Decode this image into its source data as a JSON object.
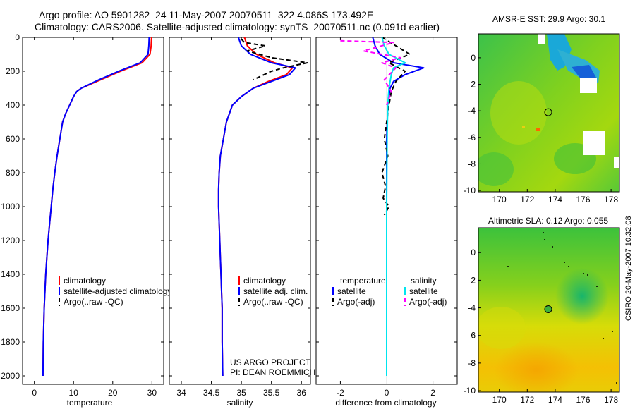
{
  "header": {
    "line1": "Argo profile: AO 5901282_24 11-May-2007 20070511_322 4.086S 173.492E",
    "line2": "Climatology: CARS2006. Satellite-adjusted climatology: synTS_20070511.nc (0.091d earlier)"
  },
  "side_credit": "CSIRO 20-May-2007 10:32:08",
  "colors": {
    "clim": "#ff0000",
    "sat": "#0000ff",
    "argo": "#000000",
    "sat_sal": "#00e5ee",
    "argo_sal": "#ff00ff"
  },
  "chart_data": [
    {
      "type": "line",
      "xlabel": "temperature",
      "xlim": [
        -3,
        33
      ],
      "ylim": [
        2050,
        0
      ],
      "xticks": [
        0,
        10,
        20,
        30
      ],
      "yticks": [
        0,
        200,
        400,
        600,
        800,
        1000,
        1200,
        1400,
        1600,
        1800,
        2000
      ],
      "legend_placement": "lower-middle",
      "series": [
        {
          "name": "climatology",
          "color": "clim",
          "dash": "",
          "x": [
            29.9,
            29.8,
            29.5,
            27.5,
            22,
            17,
            14,
            12,
            10.8,
            10,
            9,
            8,
            7.2,
            6.5,
            5.8,
            5.2,
            4.7,
            4.3,
            3.9,
            3.5,
            3.2,
            2.9,
            2.7,
            2.5,
            2.3,
            2.2
          ],
          "y": [
            0,
            50,
            100,
            150,
            200,
            250,
            280,
            300,
            320,
            350,
            400,
            450,
            500,
            600,
            700,
            800,
            900,
            1000,
            1100,
            1200,
            1300,
            1400,
            1500,
            1600,
            1800,
            2000
          ]
        },
        {
          "name": "satellite-adjusted climatology",
          "color": "sat",
          "dash": "",
          "x": [
            29.3,
            29.2,
            29,
            27,
            21.5,
            16.5,
            13.8,
            12,
            10.8,
            10,
            9,
            8,
            7.2,
            6.5,
            5.8,
            5.2,
            4.7,
            4.3,
            3.9,
            3.5,
            3.2,
            2.9,
            2.7,
            2.5,
            2.3,
            2.2
          ],
          "y": [
            0,
            50,
            100,
            150,
            200,
            250,
            280,
            300,
            320,
            350,
            400,
            450,
            500,
            600,
            700,
            800,
            900,
            1000,
            1100,
            1200,
            1300,
            1400,
            1500,
            1600,
            1800,
            2000
          ]
        },
        {
          "name": "Argo(..raw -QC)",
          "color": "argo",
          "dash": "6,4",
          "x": [],
          "y": []
        }
      ]
    },
    {
      "type": "line",
      "xlabel": "salinity",
      "xlim": [
        33.8,
        36.15
      ],
      "ylim": [
        2050,
        0
      ],
      "xticks": [
        34,
        34.5,
        35,
        35.5,
        36
      ],
      "yticks": [
        0,
        200,
        400,
        600,
        800,
        1000,
        1200,
        1400,
        1600,
        1800,
        2000
      ],
      "legend_placement": "lower-middle",
      "annotation": [
        "US ARGO PROJECT",
        "PI: DEAN ROEMMICH"
      ],
      "series": [
        {
          "name": "climatology",
          "color": "clim",
          "dash": "",
          "x": [
            35.05,
            35.1,
            35.25,
            35.55,
            35.85,
            35.75,
            35.45,
            35.2,
            35.0,
            34.85,
            34.75,
            34.7,
            34.65,
            34.63,
            34.62,
            34.62,
            34.63,
            34.64,
            34.65,
            34.66,
            34.67,
            34.68,
            34.68,
            34.69
          ],
          "y": [
            0,
            50,
            100,
            150,
            180,
            220,
            260,
            300,
            350,
            400,
            500,
            600,
            700,
            800,
            900,
            1000,
            1100,
            1200,
            1300,
            1400,
            1500,
            1600,
            1800,
            2000
          ]
        },
        {
          "name": "satellite adj. clim.",
          "color": "sat",
          "dash": "",
          "x": [
            34.95,
            35.0,
            35.15,
            35.5,
            35.9,
            35.8,
            35.5,
            35.2,
            35.0,
            34.85,
            34.75,
            34.7,
            34.65,
            34.63,
            34.62,
            34.62,
            34.63,
            34.64,
            34.65,
            34.66,
            34.67,
            34.68,
            34.68,
            34.69
          ],
          "y": [
            0,
            50,
            100,
            150,
            180,
            220,
            260,
            300,
            350,
            400,
            500,
            600,
            700,
            800,
            900,
            1000,
            1100,
            1200,
            1300,
            1400,
            1500,
            1600,
            1800,
            2000
          ]
        },
        {
          "name": "Argo(..raw -QC)",
          "color": "argo",
          "dash": "6,4",
          "x": [
            35.0,
            35.05,
            35.4,
            35.1,
            35.5,
            36.1,
            35.7,
            35.5,
            35.2
          ],
          "y": [
            10,
            30,
            50,
            80,
            120,
            150,
            180,
            200,
            250
          ]
        }
      ]
    },
    {
      "type": "line",
      "xlabel": "difference from climatology",
      "xlim": [
        -3.05,
        3.05
      ],
      "ylim": [
        2050,
        0
      ],
      "xticks": [
        -2,
        0,
        2
      ],
      "yticks": [
        0,
        200,
        400,
        600,
        800,
        1000,
        1200,
        1400,
        1600,
        1800,
        2000
      ],
      "legend_placement": "lower-middle",
      "legend_groups": [
        "temperature",
        "salinity"
      ],
      "series": [
        {
          "name": "satellite",
          "group": "temperature",
          "color": "sat",
          "dash": "",
          "x": [
            -0.6,
            -0.5,
            -0.3,
            0.3,
            1.6,
            0.8,
            0.3,
            0.15,
            0.05,
            0,
            0
          ],
          "y": [
            0,
            50,
            100,
            150,
            180,
            220,
            260,
            300,
            400,
            600,
            2000
          ]
        },
        {
          "name": "Argo(-adj)",
          "group": "temperature",
          "color": "argo",
          "dash": "6,4",
          "x": [
            -0.2,
            1.0,
            0.1,
            0.8,
            0.4,
            0.2,
            0.1,
            -0.1,
            0.05,
            -0.2,
            -0.05,
            -0.15,
            0.1,
            -0.1
          ],
          "y": [
            0,
            100,
            150,
            200,
            260,
            320,
            400,
            600,
            700,
            800,
            880,
            950,
            1000,
            1050
          ]
        },
        {
          "name": "satellite",
          "group": "salinity",
          "color": "sat_sal",
          "dash": "",
          "x": [
            -0.2,
            -0.1,
            0.1,
            0.8,
            0.3,
            0.2,
            0.1,
            0.05,
            0.02,
            0,
            0
          ],
          "y": [
            0,
            50,
            100,
            150,
            180,
            220,
            300,
            400,
            600,
            1000,
            2000
          ]
        },
        {
          "name": "Argo(-adj)",
          "group": "salinity",
          "color": "argo_sal",
          "dash": "6,4",
          "x": [
            -2.0,
            0.3,
            -1.0,
            0.6,
            -0.2,
            0.4,
            -0.1,
            0.2,
            0
          ],
          "y": [
            20,
            30,
            80,
            120,
            150,
            180,
            250,
            320,
            400
          ]
        }
      ]
    },
    {
      "type": "heatmap",
      "title": "AMSR-E SST: 29.9 Argo: 30.1",
      "xlim": [
        168.5,
        178.6
      ],
      "ylim": [
        -10.1,
        1.8
      ],
      "xticks": [
        170,
        172,
        174,
        176,
        178
      ],
      "yticks": [
        0,
        -2,
        -4,
        -6,
        -8,
        -10
      ],
      "marker": [
        173.5,
        -4.1
      ]
    },
    {
      "type": "heatmap",
      "title": "Altimetric SLA: 0.12 Argo: 0.055",
      "xlim": [
        168.5,
        178.6
      ],
      "ylim": [
        -10.1,
        1.8
      ],
      "xticks": [
        170,
        172,
        174,
        176,
        178
      ],
      "yticks": [
        0,
        -2,
        -4,
        -6,
        -8,
        -10
      ],
      "marker": [
        173.5,
        -4.1
      ]
    }
  ]
}
